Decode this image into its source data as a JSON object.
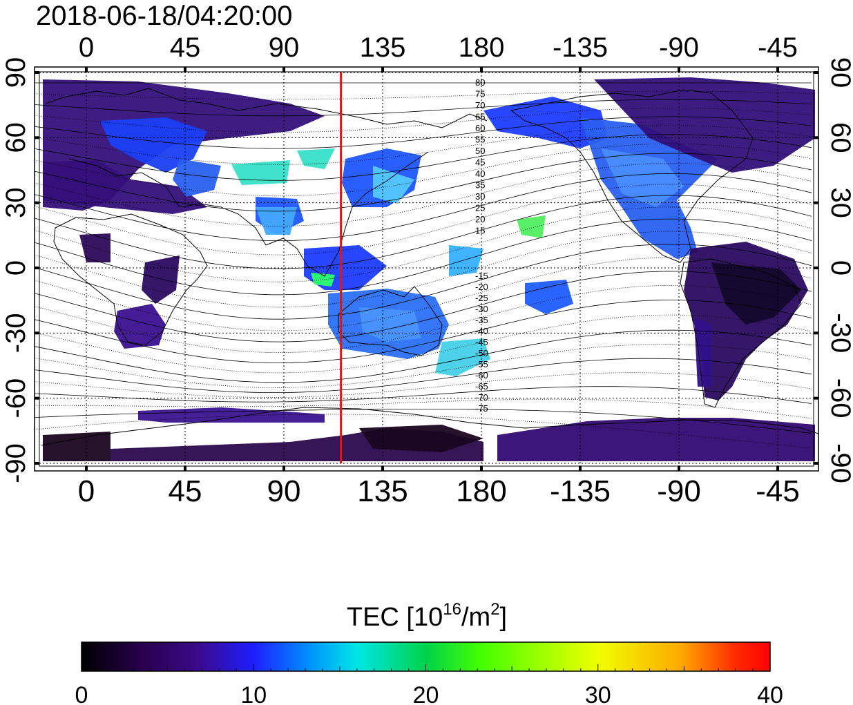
{
  "header": {
    "timestamp": "2018-06-18/04:20:00"
  },
  "map": {
    "lon_ticks_top": [
      "0",
      "45",
      "90",
      "135",
      "180",
      "-135",
      "-90",
      "-45"
    ],
    "lon_ticks_bottom": [
      "0",
      "45",
      "90",
      "135",
      "180",
      "-135",
      "-90",
      "-45"
    ],
    "lat_ticks_left": [
      "90",
      "60",
      "30",
      "0",
      "-30",
      "-60",
      "-90"
    ],
    "lat_ticks_right": [
      "90",
      "60",
      "30",
      "0",
      "-30",
      "-60",
      "-90"
    ],
    "meridian_longitude": 116,
    "contour_labels_north": [
      "80",
      "75",
      "70",
      "65",
      "60",
      "55",
      "50",
      "45",
      "40",
      "35",
      "30",
      "25",
      "20",
      "15"
    ],
    "contour_labels_south": [
      "-15",
      "-20",
      "-25",
      "-30",
      "-35",
      "-40",
      "-45",
      "-50",
      "-55",
      "-60",
      "-65",
      "-70",
      "-75"
    ],
    "colors": {
      "meridian": "#e8140c"
    }
  },
  "colorbar": {
    "title_prefix": "TEC  [10",
    "title_sup1": "16",
    "title_mid": "/m",
    "title_sup2": "2",
    "title_suffix": "]",
    "ticks": [
      "0",
      "10",
      "20",
      "30",
      "40"
    ],
    "range": [
      0,
      40
    ],
    "colors": [
      "#000000",
      "#2a0050",
      "#3b0a8c",
      "#1e1eff",
      "#0090ff",
      "#00e6e6",
      "#00d24a",
      "#44ff00",
      "#f0ff00",
      "#ffaa00",
      "#ff2a00",
      "#ff0000"
    ]
  }
}
